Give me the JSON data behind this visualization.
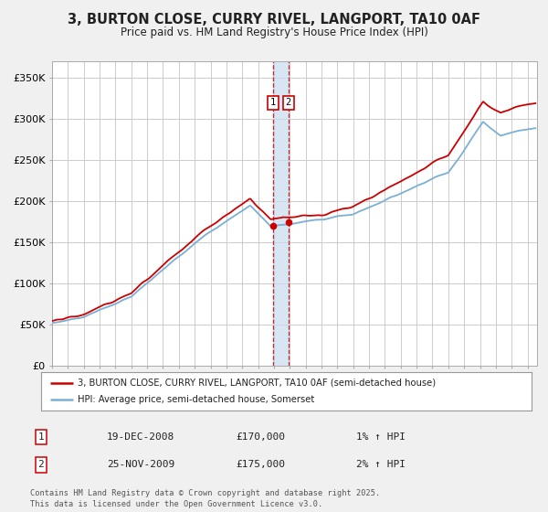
{
  "title": "3, BURTON CLOSE, CURRY RIVEL, LANGPORT, TA10 0AF",
  "subtitle": "Price paid vs. HM Land Registry's House Price Index (HPI)",
  "legend_line1": "3, BURTON CLOSE, CURRY RIVEL, LANGPORT, TA10 0AF (semi-detached house)",
  "legend_line2": "HPI: Average price, semi-detached house, Somerset",
  "annotation1_date": "19-DEC-2008",
  "annotation1_price": "£170,000",
  "annotation1_hpi": "1% ↑ HPI",
  "annotation2_date": "25-NOV-2009",
  "annotation2_price": "£175,000",
  "annotation2_hpi": "2% ↑ HPI",
  "footer": "Contains HM Land Registry data © Crown copyright and database right 2025.\nThis data is licensed under the Open Government Licence v3.0.",
  "property_color": "#cc0000",
  "hpi_color": "#7bafd4",
  "marker_color": "#cc0000",
  "vline_color": "#cc0000",
  "vband_color": "#ccddf0",
  "ylim": [
    0,
    370000
  ],
  "yticks": [
    0,
    50000,
    100000,
    150000,
    200000,
    250000,
    300000,
    350000
  ],
  "ytick_labels": [
    "£0",
    "£50K",
    "£100K",
    "£150K",
    "£200K",
    "£250K",
    "£300K",
    "£350K"
  ],
  "background_color": "#f0f0f0",
  "plot_bg_color": "#ffffff",
  "grid_color": "#cccccc",
  "sale1_t": 2008.958,
  "sale2_t": 2009.917,
  "sale1_price": 170000,
  "sale2_price": 175000
}
